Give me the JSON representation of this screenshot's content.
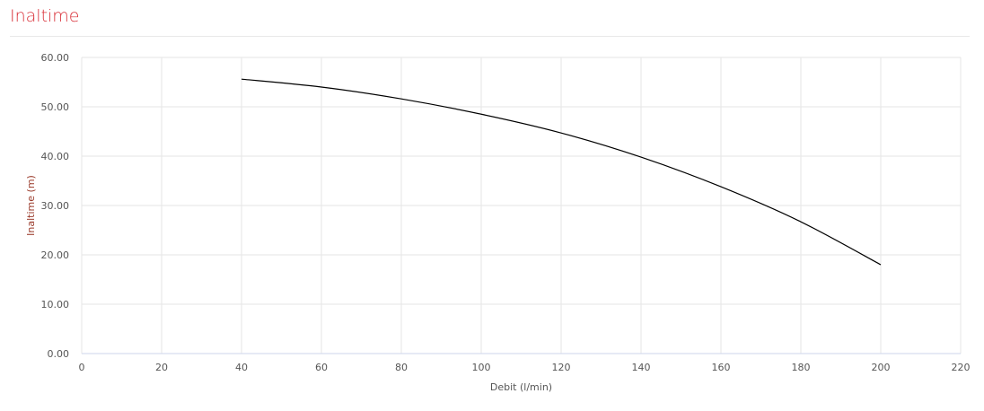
{
  "header": {
    "title": "Inaltime"
  },
  "chart_data": {
    "type": "line",
    "title": "",
    "xlabel": "Debit (l/min)",
    "ylabel": "Inaltime (m)",
    "xlim": [
      0,
      220
    ],
    "ylim": [
      0,
      60
    ],
    "xticks": [
      0,
      20,
      40,
      60,
      80,
      100,
      120,
      140,
      160,
      180,
      200,
      220
    ],
    "yticks": [
      0,
      10,
      20,
      30,
      40,
      50,
      60
    ],
    "ytick_labels": [
      "0.00",
      "10.00",
      "20.00",
      "30.00",
      "40.00",
      "50.00",
      "60.00"
    ],
    "grid": true,
    "series": [
      {
        "color": "#000000",
        "x": [
          40,
          60,
          80,
          100,
          120,
          140,
          160,
          180,
          200
        ],
        "y": [
          55.6,
          54.0,
          51.6,
          48.5,
          44.7,
          39.8,
          33.8,
          26.7,
          18.0
        ]
      }
    ],
    "colors": {
      "title": "#d9323a",
      "ylabel": "#9a3a2a"
    }
  }
}
